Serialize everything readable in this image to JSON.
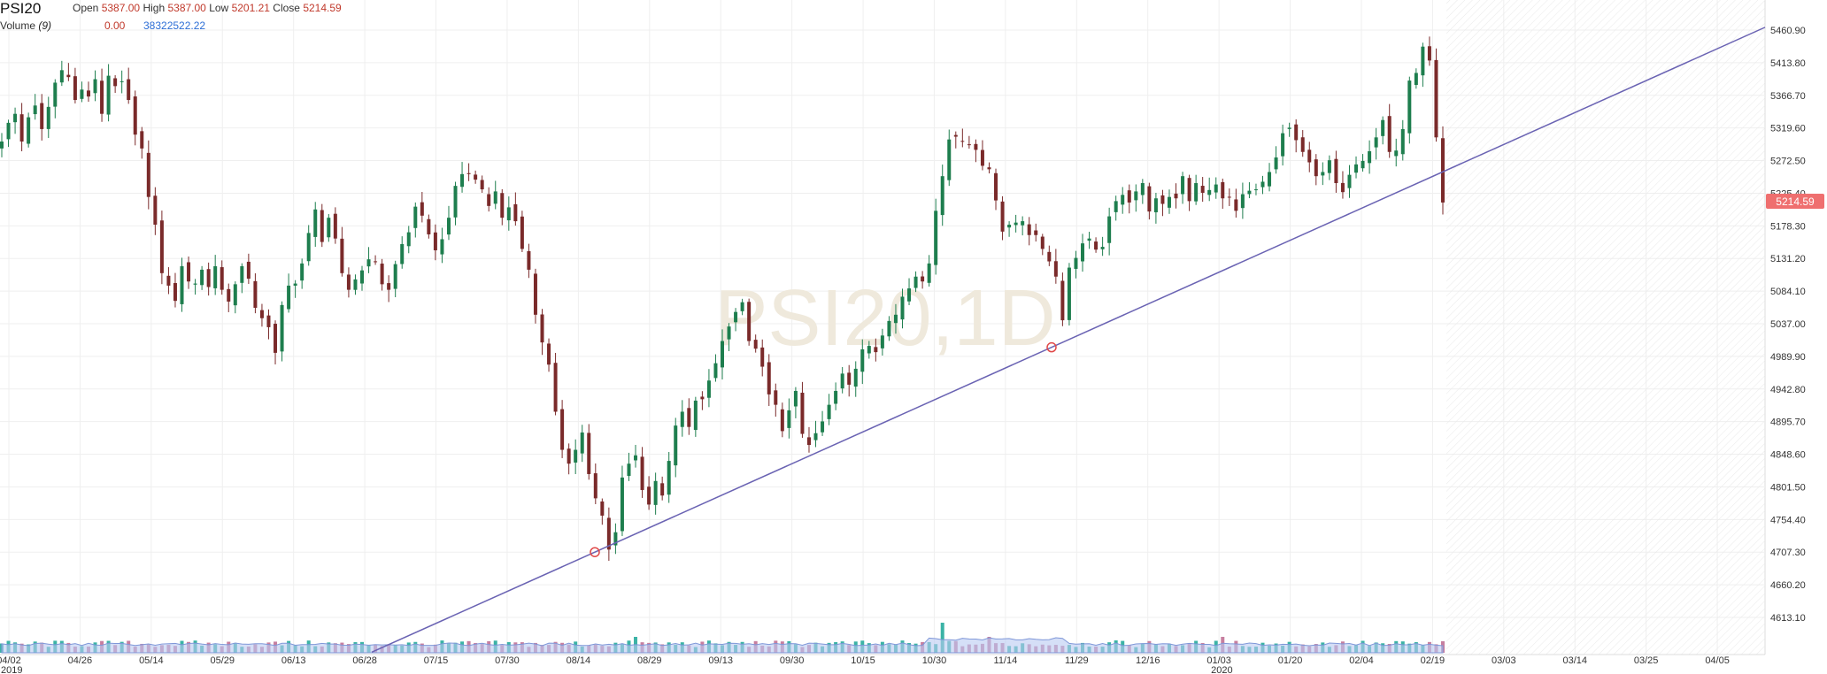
{
  "legend": {
    "symbol": "PSI20",
    "open_label": "Open",
    "open_value": "5387.00",
    "high_label": "High",
    "high_value": "5387.00",
    "low_label": "Low",
    "low_value": "5201.21",
    "close_label": "Close",
    "close_value": "5214.59",
    "volume_label": "Volume",
    "volume_period": "(9)",
    "volume_value_1": "0.00",
    "volume_value_2": "38322522.22"
  },
  "watermark": "PSI20,1D",
  "last_price_tag": "5214.59",
  "colors": {
    "up": "#1e7e4e",
    "down": "#7a2a2a",
    "volume_up": "#3bb3a6",
    "volume_down": "#c77fa0",
    "volume_ma_fill": "#b9c9f2",
    "trendline": "#6a63b3",
    "anchor": "#e04848",
    "price_tag": "#ef6f6f",
    "grid": "#efefef",
    "axis_text": "#333333"
  },
  "chart_data": {
    "type": "candlestick",
    "y_axis": {
      "ticks": [
        "5460.90",
        "5413.80",
        "5366.70",
        "5319.60",
        "5272.50",
        "5225.40",
        "5178.30",
        "5131.20",
        "5084.10",
        "5037.00",
        "4989.90",
        "4942.80",
        "4895.70",
        "4848.60",
        "4801.50",
        "4754.40",
        "4707.30",
        "4660.20",
        "4613.10"
      ],
      "range": [
        4613.1,
        5460.9
      ]
    },
    "x_axis": {
      "ticks": [
        "04/02",
        "04/26",
        "05/14",
        "05/29",
        "06/13",
        "06/28",
        "07/15",
        "07/30",
        "08/14",
        "08/29",
        "09/13",
        "09/30",
        "10/15",
        "10/30",
        "11/14",
        "11/29",
        "12/16",
        "01/03",
        "01/20",
        "02/04",
        "02/19",
        "03/03",
        "03/14",
        "03/25",
        "04/05"
      ],
      "year_labels": [
        {
          "label": "2019",
          "at": "04/02"
        },
        {
          "label": "2020",
          "at": "01/03"
        }
      ]
    },
    "anchor_points": [
      {
        "date": "08/14",
        "value": 4707.3
      },
      {
        "date": "11/22",
        "value": 5003
      }
    ],
    "closes": [
      5300,
      5327,
      5340,
      5300,
      5335,
      5352,
      5318,
      5350,
      5385,
      5403,
      5393,
      5360,
      5375,
      5365,
      5390,
      5340,
      5395,
      5380,
      5387,
      5360,
      5310,
      5290,
      5220,
      5180,
      5110,
      5092,
      5070,
      5120,
      5098,
      5095,
      5115,
      5090,
      5120,
      5086,
      5069,
      5094,
      5120,
      5102,
      5060,
      5045,
      5032,
      4995,
      5064,
      5092,
      5095,
      5124,
      5168,
      5202,
      5155,
      5190,
      5160,
      5110,
      5086,
      5101,
      5114,
      5130,
      5126,
      5094,
      5086,
      5123,
      5152,
      5169,
      5206,
      5193,
      5166,
      5143,
      5159,
      5190,
      5236,
      5253,
      5253,
      5245,
      5231,
      5207,
      5228,
      5190,
      5205,
      5185,
      5145,
      5115,
      5050,
      5010,
      4978,
      4910,
      4855,
      4835,
      4855,
      4880,
      4820,
      4785,
      4760,
      4711,
      4736,
      4815,
      4835,
      4847,
      4797,
      4776,
      4810,
      4789,
      4839,
      4890,
      4910,
      4888,
      4926,
      4928,
      4955,
      4980,
      5012,
      5033,
      5054,
      5068,
      5012,
      5001,
      4975,
      4935,
      4920,
      4882,
      4912,
      4940,
      4878,
      4862,
      4879,
      4896,
      4920,
      4940,
      4965,
      4949,
      4972,
      5000,
      5005,
      4996,
      5020,
      5041,
      5050,
      5076,
      5088,
      5105,
      5098,
      5124,
      5200,
      5250,
      5303,
      5307,
      5300,
      5296,
      5288,
      5265,
      5260,
      5215,
      5170,
      5180,
      5183,
      5185,
      5165,
      5165,
      5145,
      5127,
      5105,
      5042,
      5118,
      5132,
      5153,
      5160,
      5144,
      5148,
      5192,
      5214,
      5223,
      5212,
      5228,
      5240,
      5199,
      5218,
      5210,
      5220,
      5218,
      5250,
      5214,
      5240,
      5226,
      5230,
      5238,
      5218,
      5220,
      5200,
      5224,
      5229,
      5231,
      5242,
      5256,
      5277,
      5312,
      5320,
      5302,
      5285,
      5270,
      5250,
      5256,
      5273,
      5240,
      5227,
      5252,
      5267,
      5272,
      5286,
      5306,
      5331,
      5285,
      5287,
      5318,
      5388,
      5399,
      5437,
      5417,
      5306,
      5212
    ]
  }
}
